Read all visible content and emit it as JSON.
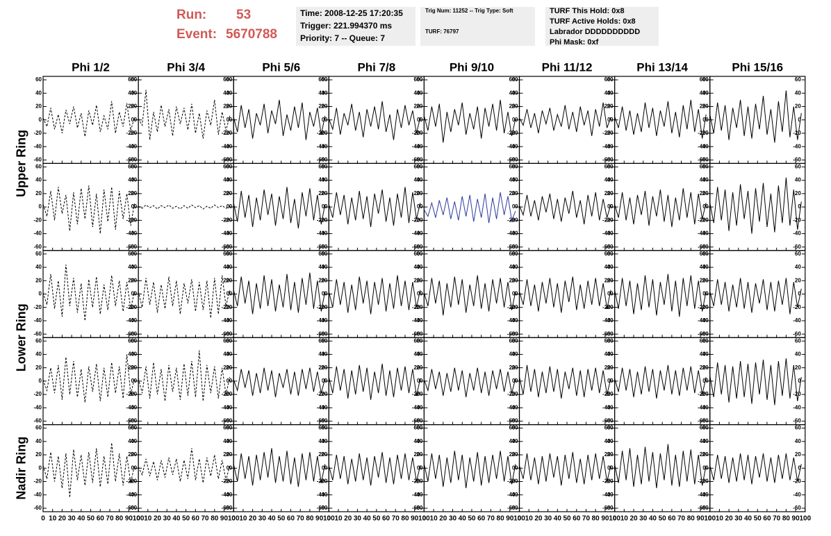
{
  "header": {
    "run_label": "Run:",
    "run": "53",
    "event_label": "Event:",
    "event": "5670788"
  },
  "info": {
    "box1": [
      "Time: 2008-12-25 17:20:35",
      "Trigger: 221.994370 ms",
      "Priority: 7 -- Queue: 7"
    ],
    "box2": [
      "Trig Num: 11252 -- Trig Type: Soft",
      "TURF: 76797"
    ],
    "box3": [
      "TURF This Hold: 0x8",
      "TURF Active Holds: 0x8",
      "Labrador DDDDDDDDDD",
      "Phi Mask: 0xf"
    ]
  },
  "chart_data": {
    "type": "line",
    "columns": [
      "Phi 1/2",
      "Phi 3/4",
      "Phi 5/6",
      "Phi 7/8",
      "Phi 9/10",
      "Phi 11/12",
      "Phi 13/14",
      "Phi 15/16"
    ],
    "rings": [
      "Upper Ring",
      "Lower Ring",
      "Nadir Ring"
    ],
    "xlim": [
      0,
      100
    ],
    "xticks": [
      0,
      10,
      20,
      30,
      40,
      50,
      60,
      70,
      80,
      90,
      100
    ],
    "ylim": [
      -60,
      60
    ],
    "yticks": [
      -60,
      -40,
      -20,
      0,
      20,
      40,
      60
    ],
    "x": [
      0,
      4,
      8,
      12,
      16,
      20,
      24,
      28,
      32,
      36,
      40,
      44,
      48,
      52,
      56,
      60,
      64,
      68,
      72,
      76,
      80,
      84,
      88,
      92,
      96
    ],
    "panels": [
      {
        "color": "#000000",
        "dashed": true,
        "values": [
          3,
          -10,
          18,
          -14,
          8,
          -20,
          15,
          -6,
          20,
          -12,
          10,
          -25,
          14,
          -8,
          22,
          -18,
          6,
          -14,
          28,
          -20,
          12,
          -10,
          25,
          -16,
          4
        ]
      },
      {
        "color": "#000000",
        "dashed": true,
        "values": [
          2,
          -8,
          45,
          -30,
          12,
          -18,
          22,
          -10,
          16,
          -24,
          20,
          -6,
          18,
          -15,
          24,
          -20,
          10,
          -28,
          14,
          -8,
          30,
          -22,
          12,
          -16,
          6
        ]
      },
      {
        "color": "#000000",
        "dashed": false,
        "values": [
          4,
          -18,
          22,
          -12,
          16,
          -28,
          10,
          -8,
          24,
          -20,
          14,
          -6,
          30,
          -24,
          8,
          -16,
          20,
          -12,
          26,
          -30,
          12,
          -10,
          18,
          -22,
          6
        ]
      },
      {
        "color": "#000000",
        "dashed": false,
        "values": [
          2,
          -14,
          18,
          -22,
          10,
          -8,
          24,
          -16,
          12,
          -26,
          16,
          -10,
          20,
          -14,
          28,
          -18,
          8,
          -30,
          16,
          -12,
          22,
          -8,
          14,
          -20,
          4
        ]
      },
      {
        "color": "#000000",
        "dashed": false,
        "values": [
          6,
          -16,
          20,
          -10,
          24,
          -34,
          12,
          -18,
          16,
          -8,
          26,
          -22,
          10,
          -14,
          20,
          -28,
          18,
          -10,
          24,
          -16,
          30,
          -20,
          12,
          -24,
          2
        ]
      },
      {
        "color": "#000000",
        "dashed": false,
        "values": [
          3,
          -8,
          16,
          -12,
          10,
          -20,
          14,
          -6,
          18,
          -16,
          8,
          -10,
          22,
          -14,
          12,
          -18,
          20,
          -8,
          14,
          -24,
          16,
          -10,
          26,
          -12,
          4
        ]
      },
      {
        "color": "#000000",
        "dashed": false,
        "values": [
          5,
          -12,
          20,
          -16,
          14,
          -22,
          10,
          -18,
          26,
          -12,
          18,
          -24,
          14,
          -10,
          28,
          -20,
          12,
          -26,
          22,
          -14,
          30,
          -18,
          16,
          -28,
          8
        ]
      },
      {
        "color": "#000000",
        "dashed": false,
        "values": [
          8,
          -20,
          26,
          -16,
          22,
          -30,
          18,
          -12,
          30,
          -24,
          20,
          -28,
          24,
          -14,
          36,
          -22,
          16,
          -34,
          28,
          -18,
          44,
          -26,
          20,
          -30,
          10
        ]
      },
      {
        "color": "#000000",
        "dashed": true,
        "values": [
          4,
          -14,
          24,
          -20,
          30,
          -10,
          18,
          -36,
          22,
          -26,
          28,
          -18,
          32,
          -30,
          20,
          -40,
          26,
          -22,
          30,
          -34,
          24,
          -18,
          20,
          -28,
          6
        ]
      },
      {
        "color": "#000000",
        "dashed": true,
        "values": [
          1,
          -2,
          3,
          -1,
          2,
          -3,
          2,
          -1,
          3,
          -2,
          1,
          -3,
          2,
          -2,
          3,
          -1,
          2,
          -3,
          1,
          -2,
          3,
          -1,
          2,
          -2,
          1
        ]
      },
      {
        "color": "#000000",
        "dashed": false,
        "values": [
          6,
          -22,
          24,
          -16,
          18,
          -30,
          14,
          -20,
          26,
          -12,
          20,
          -28,
          16,
          -18,
          30,
          -24,
          12,
          -32,
          22,
          -14,
          28,
          -20,
          18,
          -26,
          4
        ]
      },
      {
        "color": "#000000",
        "dashed": false,
        "values": [
          4,
          -16,
          22,
          -12,
          18,
          -26,
          14,
          -20,
          24,
          -18,
          16,
          -30,
          20,
          -10,
          26,
          -22,
          14,
          -28,
          20,
          -16,
          30,
          -24,
          22,
          -18,
          6
        ]
      },
      {
        "color": "#2b3a9c",
        "dashed": false,
        "values": [
          -4,
          -14,
          6,
          -16,
          10,
          -12,
          14,
          -18,
          8,
          -20,
          16,
          -14,
          18,
          -22,
          12,
          -16,
          20,
          -24,
          14,
          -18,
          22,
          -12,
          16,
          -20,
          -6
        ]
      },
      {
        "color": "#000000",
        "dashed": false,
        "values": [
          2,
          -12,
          18,
          -14,
          10,
          -20,
          16,
          -8,
          20,
          -18,
          12,
          -22,
          14,
          -10,
          24,
          -16,
          10,
          -26,
          18,
          -14,
          22,
          -20,
          12,
          -16,
          4
        ]
      },
      {
        "color": "#000000",
        "dashed": false,
        "values": [
          4,
          -16,
          22,
          -20,
          14,
          -26,
          18,
          -12,
          24,
          -28,
          16,
          -14,
          26,
          -22,
          18,
          -30,
          14,
          -20,
          28,
          -16,
          22,
          -26,
          20,
          -18,
          6
        ]
      },
      {
        "color": "#000000",
        "dashed": false,
        "values": [
          6,
          -24,
          30,
          -20,
          26,
          -36,
          22,
          -28,
          34,
          -18,
          24,
          -40,
          28,
          -22,
          36,
          -30,
          20,
          -38,
          32,
          -24,
          44,
          -28,
          26,
          -34,
          8
        ]
      },
      {
        "color": "#000000",
        "dashed": true,
        "values": [
          2,
          -16,
          30,
          -22,
          20,
          -34,
          44,
          -18,
          24,
          -28,
          16,
          -40,
          22,
          -20,
          26,
          -30,
          14,
          -24,
          28,
          -18,
          20,
          -26,
          18,
          -22,
          4
        ]
      },
      {
        "color": "#000000",
        "dashed": true,
        "values": [
          4,
          -20,
          24,
          -16,
          18,
          -28,
          14,
          -22,
          26,
          -18,
          20,
          -30,
          16,
          -14,
          22,
          -26,
          18,
          -24,
          20,
          -36,
          24,
          -30,
          28,
          -18,
          6
        ]
      },
      {
        "color": "#000000",
        "dashed": false,
        "values": [
          6,
          -18,
          26,
          -14,
          20,
          -30,
          16,
          -22,
          28,
          -18,
          22,
          -26,
          14,
          -20,
          30,
          -24,
          18,
          -28,
          24,
          -16,
          32,
          -22,
          20,
          -26,
          4
        ]
      },
      {
        "color": "#000000",
        "dashed": false,
        "values": [
          4,
          -20,
          22,
          -16,
          18,
          -28,
          14,
          -24,
          26,
          -14,
          20,
          -30,
          18,
          -16,
          24,
          -26,
          16,
          -22,
          28,
          -18,
          20,
          -24,
          18,
          -20,
          6
        ]
      },
      {
        "color": "#000000",
        "dashed": false,
        "values": [
          2,
          -18,
          24,
          -14,
          20,
          -32,
          16,
          -20,
          26,
          -16,
          22,
          -28,
          14,
          -18,
          28,
          -22,
          16,
          -26,
          22,
          -14,
          24,
          -20,
          18,
          -24,
          4
        ]
      },
      {
        "color": "#000000",
        "dashed": false,
        "values": [
          4,
          -16,
          22,
          -18,
          14,
          -26,
          18,
          -14,
          24,
          -20,
          16,
          -28,
          20,
          -12,
          26,
          -24,
          14,
          -22,
          20,
          -16,
          24,
          -18,
          16,
          -22,
          6
        ]
      },
      {
        "color": "#000000",
        "dashed": false,
        "values": [
          6,
          -22,
          24,
          -18,
          20,
          -30,
          16,
          -24,
          28,
          -20,
          22,
          -32,
          18,
          -16,
          30,
          -26,
          20,
          -34,
          24,
          -18,
          28,
          -22,
          20,
          -26,
          4
        ]
      },
      {
        "color": "#000000",
        "dashed": false,
        "values": [
          4,
          -18,
          22,
          -16,
          18,
          -26,
          14,
          -20,
          24,
          -22,
          18,
          -28,
          16,
          -14,
          22,
          -24,
          18,
          -26,
          20,
          -16,
          24,
          -30,
          18,
          -20,
          8
        ]
      },
      {
        "color": "#000000",
        "dashed": true,
        "values": [
          2,
          -14,
          20,
          -18,
          24,
          -28,
          36,
          -20,
          30,
          -24,
          18,
          -32,
          22,
          -16,
          26,
          -30,
          20,
          -24,
          28,
          -18,
          22,
          -26,
          40,
          -20,
          4
        ]
      },
      {
        "color": "#000000",
        "dashed": true,
        "values": [
          4,
          -18,
          22,
          -26,
          28,
          -20,
          18,
          -30,
          24,
          -16,
          20,
          -28,
          26,
          -22,
          30,
          -24,
          46,
          -30,
          24,
          -18,
          22,
          -26,
          20,
          -20,
          6
        ]
      },
      {
        "color": "#000000",
        "dashed": false,
        "values": [
          2,
          -14,
          18,
          -10,
          16,
          -22,
          12,
          -18,
          20,
          -14,
          16,
          -24,
          12,
          -10,
          18,
          -20,
          14,
          -22,
          18,
          -12,
          20,
          -16,
          14,
          -18,
          4
        ]
      },
      {
        "color": "#000000",
        "dashed": false,
        "values": [
          6,
          -18,
          22,
          -14,
          18,
          -26,
          16,
          -20,
          24,
          -16,
          20,
          -28,
          14,
          -18,
          26,
          -22,
          16,
          -24,
          20,
          -14,
          22,
          -18,
          18,
          -22,
          4
        ]
      },
      {
        "color": "#000000",
        "dashed": false,
        "values": [
          2,
          -14,
          18,
          -12,
          14,
          -22,
          12,
          -16,
          20,
          -14,
          16,
          -24,
          12,
          -14,
          20,
          -18,
          14,
          -22,
          16,
          -12,
          18,
          -16,
          14,
          -18,
          4
        ]
      },
      {
        "color": "#000000",
        "dashed": false,
        "values": [
          6,
          -20,
          24,
          -16,
          18,
          -24,
          14,
          -18,
          22,
          -16,
          18,
          -26,
          14,
          -12,
          20,
          -22,
          16,
          -24,
          18,
          -14,
          20,
          -18,
          16,
          -20,
          4
        ]
      },
      {
        "color": "#000000",
        "dashed": false,
        "values": [
          4,
          -16,
          20,
          -14,
          18,
          -24,
          14,
          -20,
          22,
          -16,
          18,
          -26,
          16,
          -14,
          24,
          -20,
          16,
          -22,
          20,
          -14,
          22,
          -18,
          16,
          -20,
          6
        ]
      },
      {
        "color": "#000000",
        "dashed": false,
        "values": [
          8,
          -24,
          28,
          -20,
          24,
          -32,
          22,
          -26,
          30,
          -24,
          26,
          -34,
          28,
          -20,
          32,
          -28,
          24,
          -36,
          30,
          -22,
          34,
          -26,
          24,
          -30,
          6
        ]
      },
      {
        "color": "#000000",
        "dashed": true,
        "values": [
          4,
          -16,
          24,
          -20,
          18,
          -30,
          22,
          -44,
          28,
          -18,
          20,
          -26,
          24,
          -22,
          30,
          -28,
          18,
          -24,
          38,
          -20,
          22,
          -26,
          18,
          -22,
          4
        ]
      },
      {
        "color": "#000000",
        "dashed": true,
        "values": [
          2,
          -10,
          14,
          -12,
          10,
          -18,
          12,
          -14,
          16,
          -10,
          14,
          -20,
          12,
          -16,
          30,
          -18,
          14,
          -22,
          16,
          -12,
          20,
          -16,
          12,
          -18,
          4
        ]
      },
      {
        "color": "#000000",
        "dashed": false,
        "values": [
          6,
          -20,
          22,
          -16,
          18,
          -26,
          20,
          -18,
          24,
          -14,
          30,
          -22,
          18,
          -20,
          26,
          -24,
          16,
          -28,
          22,
          -18,
          24,
          -20,
          18,
          -22,
          6
        ]
      },
      {
        "color": "#000000",
        "dashed": false,
        "values": [
          4,
          -18,
          20,
          -16,
          18,
          -24,
          14,
          -20,
          22,
          -18,
          16,
          -26,
          18,
          -14,
          24,
          -22,
          16,
          -24,
          20,
          -16,
          22,
          -18,
          16,
          -20,
          4
        ]
      },
      {
        "color": "#000000",
        "dashed": false,
        "values": [
          6,
          -20,
          22,
          -16,
          20,
          -28,
          16,
          -22,
          26,
          -18,
          20,
          -30,
          16,
          -20,
          24,
          -26,
          18,
          -22,
          20,
          -16,
          26,
          -20,
          18,
          -24,
          6
        ]
      },
      {
        "color": "#000000",
        "dashed": false,
        "values": [
          4,
          -16,
          22,
          -18,
          16,
          -24,
          18,
          -20,
          22,
          -14,
          18,
          -26,
          20,
          -16,
          24,
          -22,
          14,
          -24,
          20,
          -18,
          22,
          -16,
          18,
          -20,
          4
        ]
      },
      {
        "color": "#000000",
        "dashed": false,
        "values": [
          6,
          -22,
          26,
          -18,
          30,
          -28,
          20,
          -24,
          32,
          -20,
          24,
          -30,
          22,
          -18,
          36,
          -26,
          20,
          -28,
          26,
          -20,
          28,
          -24,
          20,
          -26,
          4
        ]
      },
      {
        "color": "#000000",
        "dashed": false,
        "values": [
          4,
          -18,
          20,
          -16,
          18,
          -22,
          16,
          -20,
          22,
          -18,
          20,
          -24,
          18,
          -14,
          22,
          -20,
          16,
          -22,
          20,
          -16,
          22,
          -18,
          16,
          -20,
          6
        ]
      }
    ]
  }
}
